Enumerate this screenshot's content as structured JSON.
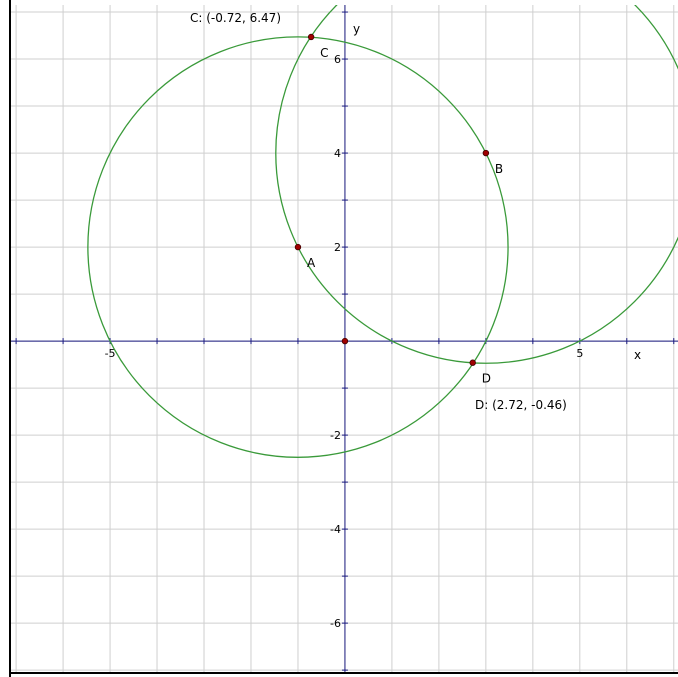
{
  "view": {
    "xlim": [
      -7.13,
      7.09
    ],
    "ylim": [
      -7.04,
      7.15
    ],
    "xgrid": [
      -7,
      -6,
      -5,
      -4,
      -3,
      -2,
      -1,
      0,
      1,
      2,
      3,
      4,
      5,
      6,
      7
    ],
    "ygrid": [
      -7,
      -6,
      -5,
      -4,
      -3,
      -2,
      -1,
      0,
      1,
      2,
      3,
      4,
      5,
      6,
      7
    ],
    "xticks": [
      -5,
      5
    ],
    "yticks": [
      -6,
      -4,
      -2,
      2,
      4,
      6
    ],
    "x_axis_label": "x",
    "y_axis_label": "y"
  },
  "points": [
    {
      "label": "A",
      "x": -1,
      "y": 2
    },
    {
      "label": "B",
      "x": 3,
      "y": 4
    },
    {
      "label": "C",
      "x": -0.72,
      "y": 6.47
    },
    {
      "label": "D",
      "x": 2.72,
      "y": -0.46
    },
    {
      "x": 0,
      "y": 0
    }
  ],
  "annotations": [
    "C: (-0.72, 6.47)",
    "D: (2.72, -0.46)"
  ]
}
